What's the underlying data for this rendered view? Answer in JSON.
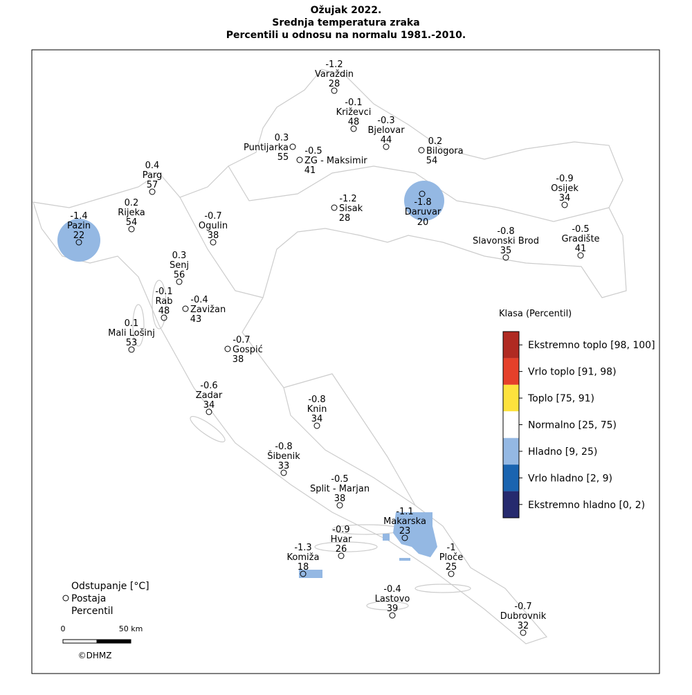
{
  "title": [
    "Ožujak 2022.",
    "Srednja temperatura zraka",
    "Percentili u odnosu na normalu 1981.-2010."
  ],
  "stations": [
    {
      "name": "Varaždin",
      "anomaly": -1.2,
      "percentile": 28
    },
    {
      "name": "Križevci",
      "anomaly": -0.1,
      "percentile": 48
    },
    {
      "name": "Bjelovar",
      "anomaly": -0.3,
      "percentile": 44
    },
    {
      "name": "Bilogora",
      "anomaly": 0.2,
      "percentile": 54
    },
    {
      "name": "Puntijarka",
      "anomaly": 0.3,
      "percentile": 55
    },
    {
      "name": "ZG - Maksimir",
      "anomaly": -0.5,
      "percentile": 41
    },
    {
      "name": "Parg",
      "anomaly": 0.4,
      "percentile": 57
    },
    {
      "name": "Rijeka",
      "anomaly": 0.2,
      "percentile": 54
    },
    {
      "name": "Pazin",
      "anomaly": -1.4,
      "percentile": 22
    },
    {
      "name": "Ogulin",
      "anomaly": -0.7,
      "percentile": 38
    },
    {
      "name": "Sisak",
      "anomaly": -1.2,
      "percentile": 28
    },
    {
      "name": "Daruvar",
      "anomaly": -1.8,
      "percentile": 20
    },
    {
      "name": "Osijek",
      "anomaly": -0.9,
      "percentile": 34
    },
    {
      "name": "Slavonski Brod",
      "anomaly": -0.8,
      "percentile": 35
    },
    {
      "name": "Gradište",
      "anomaly": -0.5,
      "percentile": 41
    },
    {
      "name": "Senj",
      "anomaly": 0.3,
      "percentile": 56
    },
    {
      "name": "Rab",
      "anomaly": -0.1,
      "percentile": 48
    },
    {
      "name": "Zavižan",
      "anomaly": -0.4,
      "percentile": 43
    },
    {
      "name": "Mali Lošinj",
      "anomaly": 0.1,
      "percentile": 53
    },
    {
      "name": "Gospić",
      "anomaly": -0.7,
      "percentile": 38
    },
    {
      "name": "Zadar",
      "anomaly": -0.6,
      "percentile": 34
    },
    {
      "name": "Knin",
      "anomaly": -0.8,
      "percentile": 34
    },
    {
      "name": "Šibenik",
      "anomaly": -0.8,
      "percentile": 33
    },
    {
      "name": "Split - Marjan",
      "anomaly": -0.5,
      "percentile": 38
    },
    {
      "name": "Makarska",
      "anomaly": -1.1,
      "percentile": 23
    },
    {
      "name": "Hvar",
      "anomaly": -0.9,
      "percentile": 26
    },
    {
      "name": "Ploče",
      "anomaly": -1,
      "percentile": 25
    },
    {
      "name": "Komiža",
      "anomaly": -1.3,
      "percentile": 18
    },
    {
      "name": "Lastovo",
      "anomaly": -0.4,
      "percentile": 39
    },
    {
      "name": "Dubrovnik",
      "anomaly": -0.7,
      "percentile": 32
    }
  ],
  "legend": {
    "title": "Klasa (Percentil)",
    "classes": [
      {
        "label": "Ekstremno toplo [98, 100]",
        "color": "#b02a22"
      },
      {
        "label": "Vrlo toplo [91, 98)",
        "color": "#e5402a"
      },
      {
        "label": "Toplo [75, 91)",
        "color": "#fde23d"
      },
      {
        "label": "Normalno [25, 75)",
        "color": "#ffffff"
      },
      {
        "label": "Hladno [9, 25)",
        "color": "#94b8e3"
      },
      {
        "label": "Vrlo hladno [2, 9)",
        "color": "#1a64b0"
      },
      {
        "label": "Ekstremno hladno [0, 2)",
        "color": "#262a6e"
      }
    ]
  },
  "key": [
    "Odstupanje [°C]",
    "Postaja",
    "Percentil"
  ],
  "scale_bar": [
    "0",
    "50 km"
  ],
  "credit": "©DHMZ"
}
